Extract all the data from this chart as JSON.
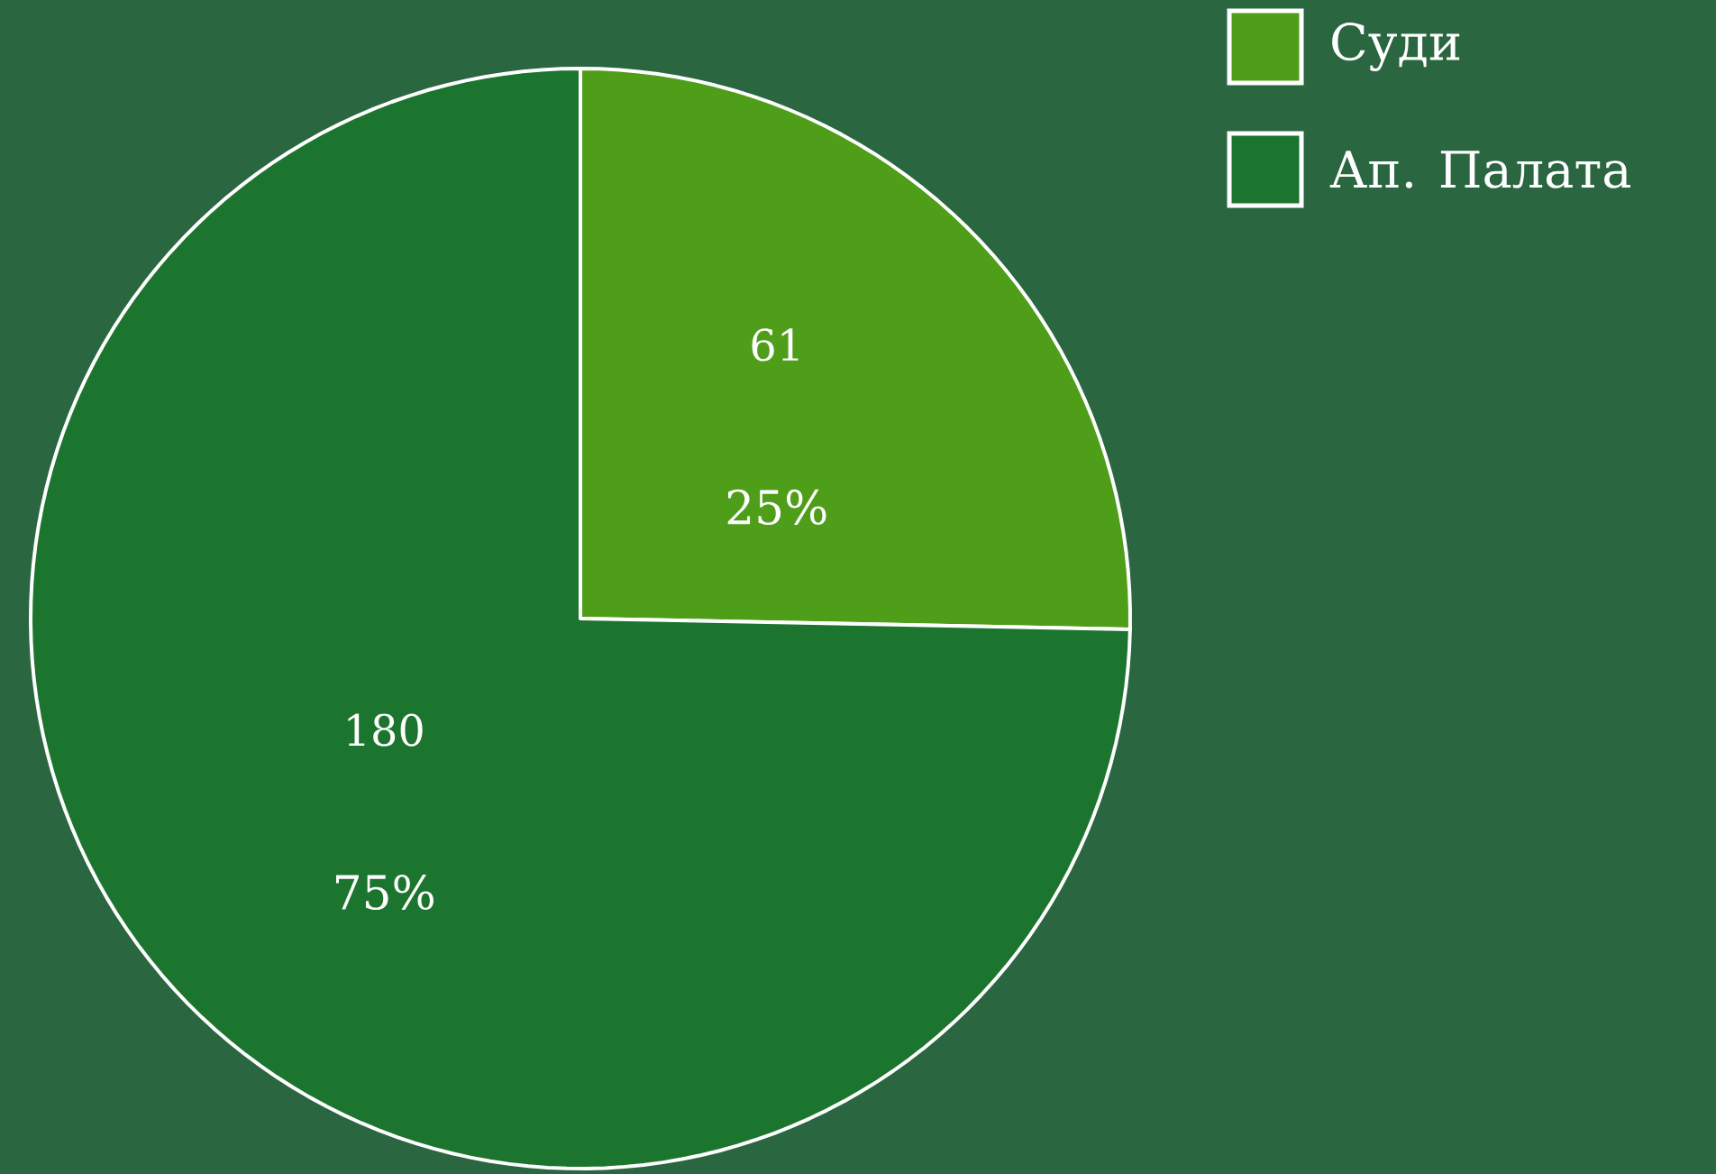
{
  "chart_data": {
    "type": "pie",
    "categories": [
      "Суди",
      "Ап. Палата"
    ],
    "values": [
      61,
      180
    ],
    "colors": [
      "#4f9e1a",
      "#1c752e"
    ],
    "value_labels": [
      "61",
      "180"
    ],
    "annotations": [
      "25%",
      "75%"
    ],
    "legend": "top right"
  }
}
